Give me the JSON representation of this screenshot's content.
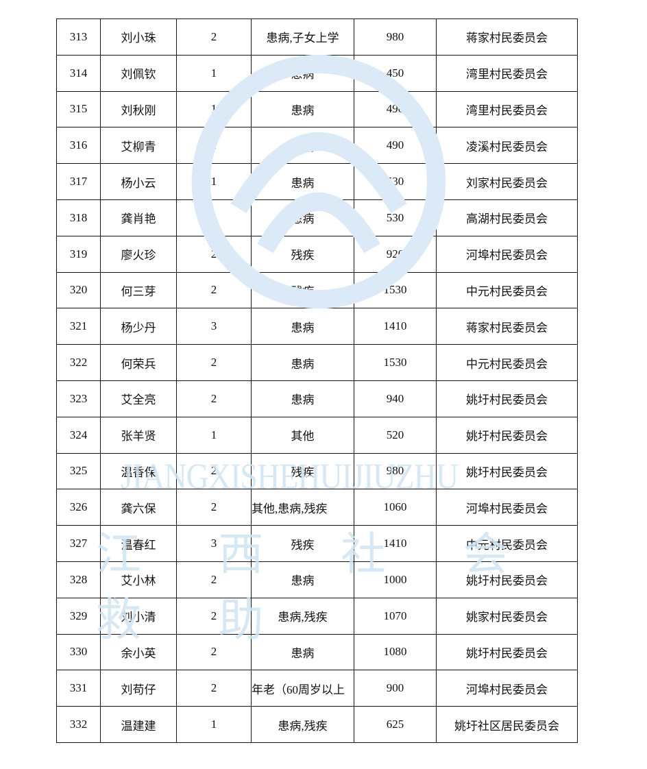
{
  "watermark": {
    "en": "JIANGXISHEHUIJIUZHU",
    "cn": "江 西 社 会 救 助",
    "color": "#cfe4f3"
  },
  "rows": [
    [
      "313",
      "刘小珠",
      "2",
      "患病,子女上学",
      "980",
      "蒋家村民委员会"
    ],
    [
      "314",
      "刘佩钦",
      "1",
      "患病",
      "450",
      "湾里村民委员会"
    ],
    [
      "315",
      "刘秋刚",
      "1",
      "患病",
      "490",
      "湾里村民委员会"
    ],
    [
      "316",
      "艾柳青",
      "1",
      "患病",
      "490",
      "凌溪村民委员会"
    ],
    [
      "317",
      "杨小云",
      "1",
      "患病",
      "530",
      "刘家村民委员会"
    ],
    [
      "318",
      "龚肖艳",
      "1",
      "患病",
      "530",
      "高湖村民委员会"
    ],
    [
      "319",
      "廖火珍",
      "2",
      "残疾",
      "920",
      "河埠村民委员会"
    ],
    [
      "320",
      "何三芽",
      "2",
      "残疾",
      "1530",
      "中元村民委员会"
    ],
    [
      "321",
      "杨少丹",
      "3",
      "患病",
      "1410",
      "蒋家村民委员会"
    ],
    [
      "322",
      "何荣兵",
      "2",
      "患病",
      "1530",
      "中元村民委员会"
    ],
    [
      "323",
      "艾全亮",
      "2",
      "患病",
      "940",
      "姚圩村民委员会"
    ],
    [
      "324",
      "张羊贤",
      "1",
      "其他",
      "520",
      "姚圩村民委员会"
    ],
    [
      "325",
      "温香保",
      "2",
      "残疾",
      "980",
      "姚圩村民委员会"
    ],
    [
      "326",
      "龚六保",
      "2",
      "其他,患病,残疾",
      "1060",
      "河埠村民委员会"
    ],
    [
      "327",
      "温春红",
      "3",
      "残疾",
      "1410",
      "中元村民委员会"
    ],
    [
      "328",
      "艾小林",
      "2",
      "患病",
      "1000",
      "姚圩村民委员会"
    ],
    [
      "329",
      "刘小清",
      "2",
      "患病,残疾",
      "1070",
      "姚家村民委员会"
    ],
    [
      "330",
      "余小英",
      "2",
      "患病",
      "1080",
      "姚圩村民委员会"
    ],
    [
      "331",
      "刘苟仔",
      "2",
      "年老（60周岁以上",
      "900",
      "河埠村民委员会"
    ],
    [
      "332",
      "温建建",
      "1",
      "患病,残疾",
      "625",
      "姚圩社区居民委员会"
    ]
  ]
}
